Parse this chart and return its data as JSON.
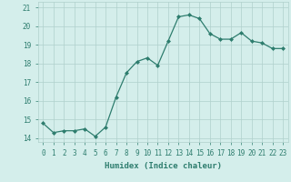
{
  "xlabel": "Humidex (Indice chaleur)",
  "ylabel": "",
  "x": [
    0,
    1,
    2,
    3,
    4,
    5,
    6,
    7,
    8,
    9,
    10,
    11,
    12,
    13,
    14,
    15,
    16,
    17,
    18,
    19,
    20,
    21,
    22,
    23
  ],
  "y": [
    14.8,
    14.3,
    14.4,
    14.4,
    14.5,
    14.1,
    14.6,
    16.2,
    17.5,
    18.1,
    18.3,
    17.9,
    19.2,
    20.5,
    20.6,
    20.4,
    19.6,
    19.3,
    19.3,
    19.65,
    19.2,
    19.1,
    18.8,
    18.8
  ],
  "line_color": "#2e7d6e",
  "marker_color": "#2e7d6e",
  "bg_color": "#d4eeeb",
  "grid_color": "#b0d0cc",
  "tick_color": "#2e7d6e",
  "label_color": "#2e7d6e",
  "ylim": [
    13.8,
    21.3
  ],
  "yticks": [
    14,
    15,
    16,
    17,
    18,
    19,
    20,
    21
  ],
  "xticks": [
    0,
    1,
    2,
    3,
    4,
    5,
    6,
    7,
    8,
    9,
    10,
    11,
    12,
    13,
    14,
    15,
    16,
    17,
    18,
    19,
    20,
    21,
    22,
    23
  ],
  "xtick_labels": [
    "0",
    "1",
    "2",
    "3",
    "4",
    "5",
    "6",
    "7",
    "8",
    "9",
    "10",
    "11",
    "12",
    "13",
    "14",
    "15",
    "16",
    "17",
    "18",
    "19",
    "20",
    "21",
    "22",
    "23"
  ],
  "xlabel_fontsize": 6.5,
  "tick_fontsize": 5.5
}
